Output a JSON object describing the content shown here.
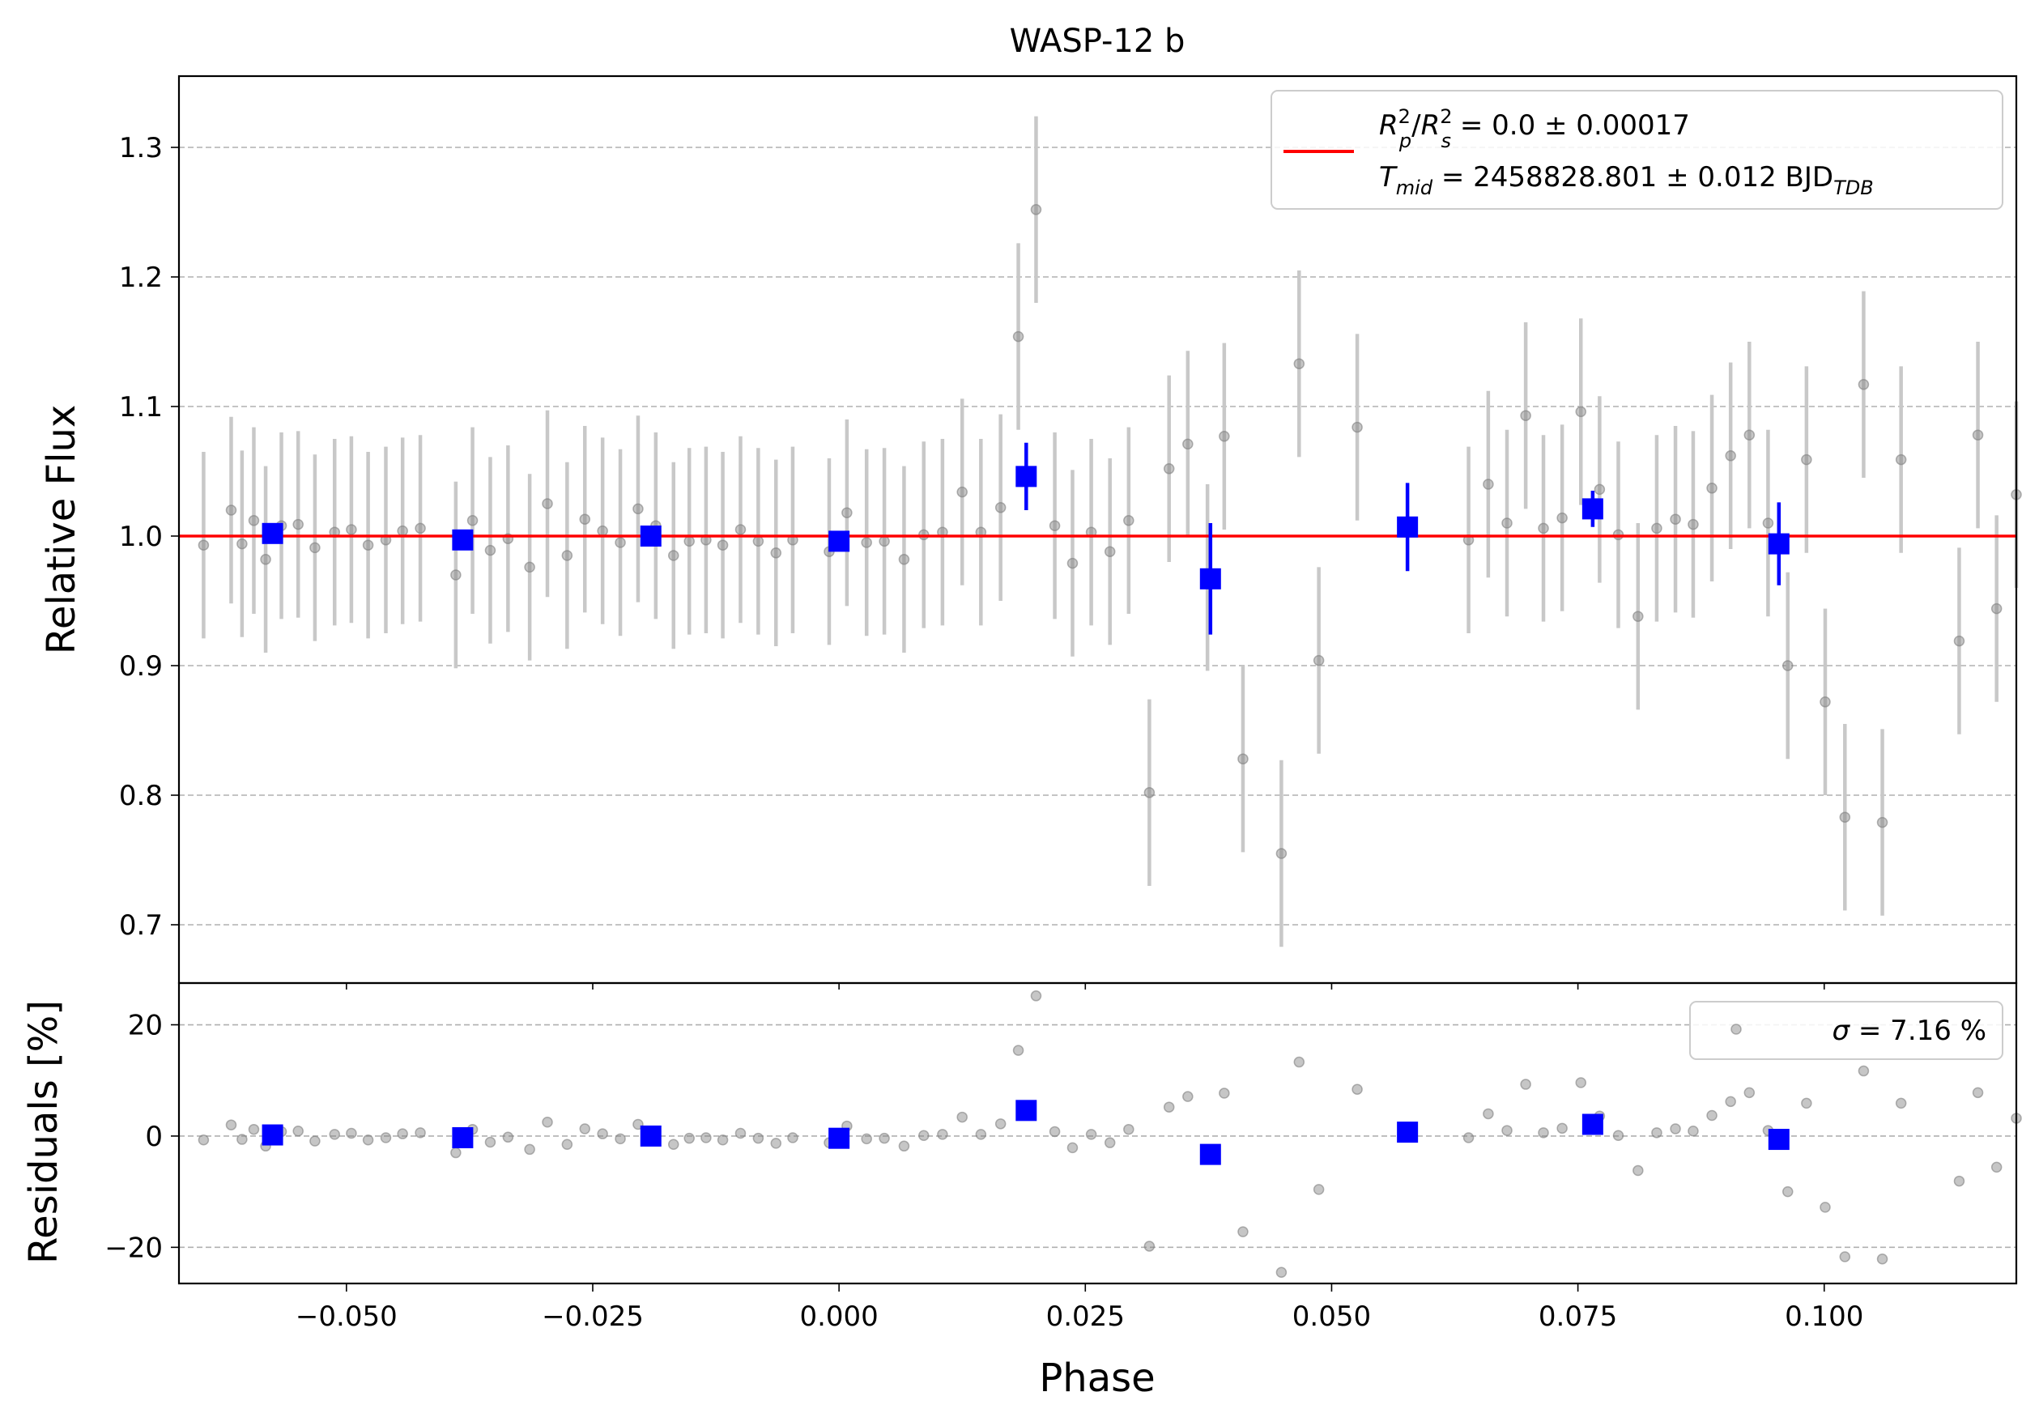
{
  "chart_data": {
    "type": "scatter",
    "title": "WASP-12 b",
    "xlabel": "Phase",
    "xlim": [
      -0.067,
      0.1195
    ],
    "xticks": [
      -0.05,
      -0.025,
      0.0,
      0.025,
      0.05,
      0.075,
      0.1
    ],
    "xtick_labels": [
      "−0.050",
      "−0.025",
      "0.000",
      "0.025",
      "0.050",
      "0.075",
      "0.100"
    ],
    "grid": "horizontal dashed",
    "colors": {
      "data": "#808080",
      "binned": "#0000ff",
      "model": "#ff0000",
      "errorbar": "#c8c8c8",
      "grid": "#b0b0b0"
    },
    "flux_panel": {
      "ylabel": "Relative Flux",
      "ylim": [
        0.655,
        1.355
      ],
      "yticks": [
        0.7,
        0.8,
        0.9,
        1.0,
        1.1,
        1.2,
        1.3
      ],
      "ytick_labels": [
        "0.7",
        "0.8",
        "0.9",
        "1.0",
        "1.1",
        "1.2",
        "1.3"
      ],
      "legend_placement": "upper-right",
      "legend": {
        "l1_rp": "R",
        "l1_rp_sup": "2",
        "l1_rp_sub": "p",
        "l1_rs": "R",
        "l1_rs_sup": "2",
        "l1_rs_sub": "s",
        "l1_value": " = 0.0 ± 0.00017",
        "l2_t": "T",
        "l2_t_sub": "mid",
        "l2_value": " = 2458828.801 ± 0.012 BJD",
        "l2_unit_sub": "TDB"
      },
      "model": {
        "name": "model",
        "y": 1.0
      },
      "data": [
        [
          -0.0645,
          0.993,
          0.072
        ],
        [
          -0.0617,
          1.02,
          0.072
        ],
        [
          -0.0606,
          0.994,
          0.072
        ],
        [
          -0.0594,
          1.012,
          0.072
        ],
        [
          -0.0582,
          0.982,
          0.072
        ],
        [
          -0.0566,
          1.008,
          0.072
        ],
        [
          -0.0549,
          1.009,
          0.072
        ],
        [
          -0.0532,
          0.991,
          0.072
        ],
        [
          -0.0512,
          1.003,
          0.072
        ],
        [
          -0.0495,
          1.005,
          0.072
        ],
        [
          -0.0478,
          0.993,
          0.072
        ],
        [
          -0.046,
          0.997,
          0.072
        ],
        [
          -0.0443,
          1.004,
          0.072
        ],
        [
          -0.0425,
          1.006,
          0.072
        ],
        [
          -0.0389,
          0.97,
          0.072
        ],
        [
          -0.0372,
          1.012,
          0.072
        ],
        [
          -0.0354,
          0.989,
          0.072
        ],
        [
          -0.0336,
          0.998,
          0.072
        ],
        [
          -0.0314,
          0.976,
          0.072
        ],
        [
          -0.0296,
          1.025,
          0.072
        ],
        [
          -0.0276,
          0.985,
          0.072
        ],
        [
          -0.0258,
          1.013,
          0.072
        ],
        [
          -0.024,
          1.004,
          0.072
        ],
        [
          -0.0222,
          0.995,
          0.072
        ],
        [
          -0.0204,
          1.021,
          0.072
        ],
        [
          -0.0186,
          1.008,
          0.072
        ],
        [
          -0.0168,
          0.985,
          0.072
        ],
        [
          -0.0152,
          0.996,
          0.072
        ],
        [
          -0.0135,
          0.997,
          0.072
        ],
        [
          -0.0118,
          0.993,
          0.072
        ],
        [
          -0.01,
          1.005,
          0.072
        ],
        [
          -0.0082,
          0.996,
          0.072
        ],
        [
          -0.0064,
          0.987,
          0.072
        ],
        [
          -0.0047,
          0.997,
          0.072
        ],
        [
          -0.001,
          0.988,
          0.072
        ],
        [
          0.0008,
          1.018,
          0.072
        ],
        [
          0.0028,
          0.995,
          0.072
        ],
        [
          0.0046,
          0.996,
          0.072
        ],
        [
          0.0066,
          0.982,
          0.072
        ],
        [
          0.0086,
          1.001,
          0.072
        ],
        [
          0.0105,
          1.003,
          0.072
        ],
        [
          0.0125,
          1.034,
          0.072
        ],
        [
          0.0144,
          1.003,
          0.072
        ],
        [
          0.0164,
          1.022,
          0.072
        ],
        [
          0.0182,
          1.154,
          0.072
        ],
        [
          0.02,
          1.252,
          0.072
        ],
        [
          0.0219,
          1.008,
          0.072
        ],
        [
          0.0237,
          0.979,
          0.072
        ],
        [
          0.0256,
          1.003,
          0.072
        ],
        [
          0.0275,
          0.988,
          0.072
        ],
        [
          0.0294,
          1.012,
          0.072
        ],
        [
          0.0315,
          0.802,
          0.072
        ],
        [
          0.0335,
          1.052,
          0.072
        ],
        [
          0.0354,
          1.071,
          0.072
        ],
        [
          0.0374,
          0.968,
          0.072
        ],
        [
          0.0391,
          1.077,
          0.072
        ],
        [
          0.041,
          0.828,
          0.072
        ],
        [
          0.0449,
          0.755,
          0.072
        ],
        [
          0.0467,
          1.133,
          0.072
        ],
        [
          0.0487,
          0.904,
          0.072
        ],
        [
          0.0526,
          1.084,
          0.072
        ],
        [
          0.0639,
          0.997,
          0.072
        ],
        [
          0.0659,
          1.04,
          0.072
        ],
        [
          0.0678,
          1.01,
          0.072
        ],
        [
          0.0697,
          1.093,
          0.072
        ],
        [
          0.0715,
          1.006,
          0.072
        ],
        [
          0.0734,
          1.014,
          0.072
        ],
        [
          0.0753,
          1.096,
          0.072
        ],
        [
          0.0772,
          1.036,
          0.072
        ],
        [
          0.0791,
          1.001,
          0.072
        ],
        [
          0.0811,
          0.938,
          0.072
        ],
        [
          0.083,
          1.006,
          0.072
        ],
        [
          0.0849,
          1.013,
          0.072
        ],
        [
          0.0867,
          1.009,
          0.072
        ],
        [
          0.0886,
          1.037,
          0.072
        ],
        [
          0.0905,
          1.062,
          0.072
        ],
        [
          0.0924,
          1.078,
          0.072
        ],
        [
          0.0943,
          1.01,
          0.072
        ],
        [
          0.0963,
          0.9,
          0.072
        ],
        [
          0.0982,
          1.059,
          0.072
        ],
        [
          0.1001,
          0.872,
          0.072
        ],
        [
          0.1021,
          0.783,
          0.072
        ],
        [
          0.104,
          1.117,
          0.072
        ],
        [
          0.1059,
          0.779,
          0.072
        ],
        [
          0.1078,
          1.059,
          0.072
        ],
        [
          0.1137,
          0.919,
          0.072
        ],
        [
          0.1156,
          1.078,
          0.072
        ],
        [
          0.1175,
          0.944,
          0.072
        ],
        [
          0.1195,
          1.032,
          0.072
        ]
      ],
      "binned": [
        [
          -0.0575,
          1.002,
          0.006
        ],
        [
          -0.0382,
          0.997,
          0.006
        ],
        [
          -0.0191,
          1.0,
          0.006
        ],
        [
          0.0,
          0.996,
          0.006
        ],
        [
          0.019,
          1.046,
          0.026
        ],
        [
          0.0377,
          0.967,
          0.043
        ],
        [
          0.0577,
          1.007,
          0.034
        ],
        [
          0.0765,
          1.021,
          0.014
        ],
        [
          0.0954,
          0.994,
          0.032
        ]
      ]
    },
    "residual_panel": {
      "ylabel": "Residuals [%]",
      "ylim": [
        -26.5,
        27.5
      ],
      "yticks": [
        -20,
        0,
        20
      ],
      "ytick_labels": [
        "−20",
        "0",
        "20"
      ],
      "legend_placement": "upper-right",
      "legend": {
        "sigma_symbol": "σ",
        "sigma_text": " = 7.16 %"
      },
      "data_name": "residuals",
      "binned_name": "binned residuals"
    }
  }
}
